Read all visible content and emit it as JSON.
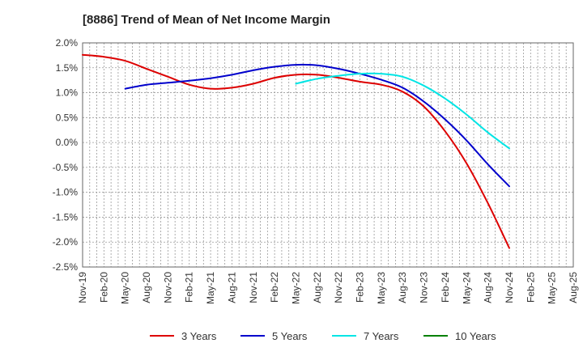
{
  "chart_data": {
    "type": "line",
    "title": "[8886]  Trend of Mean of Net Income Margin",
    "xlabel": "",
    "ylabel": "",
    "x_ticks": [
      "Nov-19",
      "Feb-20",
      "May-20",
      "Aug-20",
      "Nov-20",
      "Feb-21",
      "May-21",
      "Aug-21",
      "Nov-21",
      "Feb-22",
      "May-22",
      "Aug-22",
      "Nov-22",
      "Feb-23",
      "May-23",
      "Aug-23",
      "Nov-23",
      "Feb-24",
      "May-24",
      "Aug-24",
      "Nov-24",
      "Feb-25",
      "May-25",
      "Aug-25"
    ],
    "y_ticks": [
      "2.0%",
      "1.5%",
      "1.0%",
      "0.5%",
      "0.0%",
      "-0.5%",
      "-1.0%",
      "-1.5%",
      "-2.0%",
      "-2.5%"
    ],
    "ylim": [
      -2.5,
      2.0
    ],
    "grid": true,
    "legend_position": "bottom",
    "series": [
      {
        "name": "3 Years",
        "color": "#dd0000",
        "x": [
          "Nov-19",
          "Feb-20",
          "May-20",
          "Aug-20",
          "Nov-20",
          "Feb-21",
          "May-21",
          "Aug-21",
          "Nov-21",
          "Feb-22",
          "May-22",
          "Aug-22",
          "Nov-22",
          "Feb-23",
          "May-23",
          "Aug-23",
          "Nov-23",
          "Feb-24",
          "May-24",
          "Aug-24",
          "Nov-24"
        ],
        "values": [
          1.76,
          1.72,
          1.64,
          1.48,
          1.32,
          1.16,
          1.08,
          1.1,
          1.18,
          1.3,
          1.36,
          1.36,
          1.3,
          1.22,
          1.16,
          1.02,
          0.72,
          0.22,
          -0.42,
          -1.22,
          -2.12
        ]
      },
      {
        "name": "5 Years",
        "color": "#0000cc",
        "x": [
          "May-20",
          "Aug-20",
          "Nov-20",
          "Feb-21",
          "May-21",
          "Aug-21",
          "Nov-21",
          "Feb-22",
          "May-22",
          "Aug-22",
          "Nov-22",
          "Feb-23",
          "May-23",
          "Aug-23",
          "Nov-23",
          "Feb-24",
          "May-24",
          "Aug-24",
          "Nov-24"
        ],
        "values": [
          1.08,
          1.16,
          1.2,
          1.24,
          1.29,
          1.36,
          1.45,
          1.52,
          1.56,
          1.55,
          1.48,
          1.38,
          1.26,
          1.1,
          0.82,
          0.46,
          0.04,
          -0.44,
          -0.88
        ]
      },
      {
        "name": "7 Years",
        "color": "#00e5e5",
        "x": [
          "May-22",
          "Aug-22",
          "Nov-22",
          "Feb-23",
          "May-23",
          "Aug-23",
          "Nov-23",
          "Feb-24",
          "May-24",
          "Aug-24",
          "Nov-24"
        ],
        "values": [
          1.18,
          1.28,
          1.34,
          1.38,
          1.38,
          1.32,
          1.14,
          0.88,
          0.56,
          0.2,
          -0.12
        ]
      },
      {
        "name": "10 Years",
        "color": "#008000",
        "x": [],
        "values": []
      }
    ]
  }
}
